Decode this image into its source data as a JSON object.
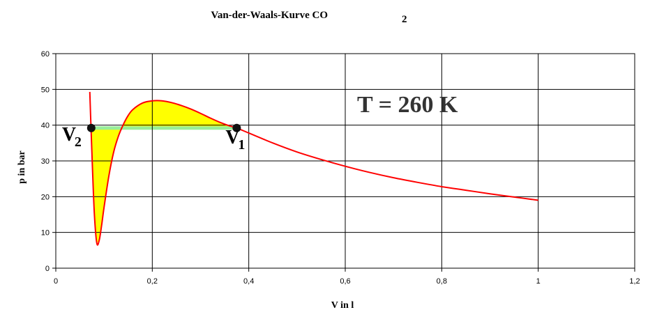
{
  "chart_data": {
    "type": "line",
    "title_main": "Van-der-Waals-Kurve CO",
    "title_sub": "2",
    "xlabel": "V in l",
    "ylabel": "p in bar",
    "xlim": [
      0,
      1.2
    ],
    "ylim": [
      0,
      60
    ],
    "xticks": [
      0,
      0.2,
      0.4,
      0.6,
      0.8,
      1,
      1.2
    ],
    "xtick_labels": [
      "0",
      "0,2",
      "0,4",
      "0,6",
      "0,8",
      "1",
      "1,2"
    ],
    "yticks": [
      0,
      10,
      20,
      30,
      40,
      50,
      60
    ],
    "ytick_labels": [
      "0",
      "10",
      "20",
      "30",
      "40",
      "50",
      "60"
    ],
    "grid": true,
    "annotation": "T = 260 K",
    "equilibrium_pressure": 39.2,
    "points": [
      {
        "label": "V",
        "sub": "2",
        "x": 0.0735,
        "y": 39.2
      },
      {
        "label": "V",
        "sub": "1",
        "x": 0.375,
        "y": 39.2
      }
    ],
    "series": [
      {
        "x": [
          0.0705,
          0.073,
          0.076,
          0.08,
          0.085,
          0.09,
          0.095,
          0.1,
          0.11,
          0.12,
          0.13,
          0.14,
          0.15,
          0.16,
          0.18,
          0.2,
          0.22,
          0.24,
          0.26,
          0.28,
          0.3,
          0.32,
          0.34,
          0.36,
          0.375,
          0.4,
          0.45,
          0.5,
          0.55,
          0.6,
          0.65,
          0.7,
          0.75,
          0.8,
          0.85,
          0.9,
          0.95,
          1.0
        ],
        "values": [
          49.3,
          39.2,
          28.0,
          15.0,
          7.0,
          7.8,
          12.0,
          17.0,
          25.8,
          32.5,
          37.0,
          40.2,
          42.7,
          44.4,
          46.2,
          46.8,
          46.8,
          46.3,
          45.5,
          44.5,
          43.3,
          42.0,
          40.8,
          39.8,
          39.2,
          37.8,
          35.0,
          32.5,
          30.4,
          28.5,
          26.8,
          25.3,
          24.0,
          22.8,
          21.8,
          20.8,
          19.9,
          19.0
        ],
        "color": "#ff0000"
      }
    ],
    "colors": {
      "curve": "#ff0000",
      "fill_area": "#ffff00",
      "equilibrium_line": "#99ee99",
      "grid": "#000000",
      "plot_border": "#000000",
      "annotation": "#333333",
      "marker": "#111111"
    }
  }
}
